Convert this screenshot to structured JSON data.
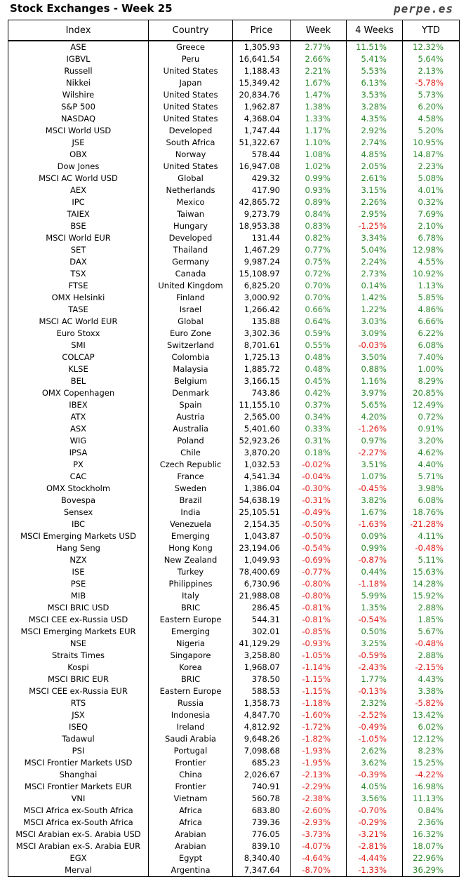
{
  "header": {
    "title": "Stock Exchanges - Week 25",
    "brand": "perpe.es"
  },
  "columns": [
    "Index",
    "Country",
    "Price",
    "Week",
    "4 Weeks",
    "YTD"
  ],
  "colors": {
    "positive": "#2e8b2e",
    "negative": "#e0201a"
  },
  "rows": [
    [
      "ASE",
      "Greece",
      "1,305.93",
      "2.77%",
      "11.51%",
      "12.32%"
    ],
    [
      "IGBVL",
      "Peru",
      "16,641.54",
      "2.66%",
      "5.41%",
      "5.64%"
    ],
    [
      "Russell",
      "United States",
      "1,188.43",
      "2.21%",
      "5.53%",
      "2.13%"
    ],
    [
      "Nikkei",
      "Japan",
      "15,349.42",
      "1.67%",
      "6.13%",
      "-5.78%"
    ],
    [
      "Wilshire",
      "United States",
      "20,834.76",
      "1.47%",
      "3.53%",
      "5.73%"
    ],
    [
      "S&P 500",
      "United States",
      "1,962.87",
      "1.38%",
      "3.28%",
      "6.20%"
    ],
    [
      "NASDAQ",
      "United States",
      "4,368.04",
      "1.33%",
      "4.35%",
      "4.58%"
    ],
    [
      "MSCI World USD",
      "Developed",
      "1,747.44",
      "1.17%",
      "2.92%",
      "5.20%"
    ],
    [
      "JSE",
      "South Africa",
      "51,322.67",
      "1.10%",
      "2.74%",
      "10.95%"
    ],
    [
      "OBX",
      "Norway",
      "578.44",
      "1.08%",
      "4.85%",
      "14.87%"
    ],
    [
      "Dow Jones",
      "United States",
      "16,947.08",
      "1.02%",
      "2.05%",
      "2.23%"
    ],
    [
      "MSCI AC World USD",
      "Global",
      "429.32",
      "0.99%",
      "2.61%",
      "5.08%"
    ],
    [
      "AEX",
      "Netherlands",
      "417.90",
      "0.93%",
      "3.15%",
      "4.01%"
    ],
    [
      "IPC",
      "Mexico",
      "42,865.72",
      "0.89%",
      "2.26%",
      "0.32%"
    ],
    [
      "TAIEX",
      "Taiwan",
      "9,273.79",
      "0.84%",
      "2.95%",
      "7.69%"
    ],
    [
      "BSE",
      "Hungary",
      "18,953.38",
      "0.83%",
      "-1.25%",
      "2.10%"
    ],
    [
      "MSCI World EUR",
      "Developed",
      "131.44",
      "0.82%",
      "3.34%",
      "6.78%"
    ],
    [
      "SET",
      "Thailand",
      "1,467.29",
      "0.77%",
      "5.04%",
      "12.98%"
    ],
    [
      "DAX",
      "Germany",
      "9,987.24",
      "0.75%",
      "2.24%",
      "4.55%"
    ],
    [
      "TSX",
      "Canada",
      "15,108.97",
      "0.72%",
      "2.73%",
      "10.92%"
    ],
    [
      "FTSE",
      "United Kingdom",
      "6,825.20",
      "0.70%",
      "0.14%",
      "1.13%"
    ],
    [
      "OMX Helsinki",
      "Finland",
      "3,000.92",
      "0.70%",
      "1.42%",
      "5.85%"
    ],
    [
      "TASE",
      "Israel",
      "1,266.42",
      "0.66%",
      "1.22%",
      "4.86%"
    ],
    [
      "MSCI AC World EUR",
      "Global",
      "135.88",
      "0.64%",
      "3.03%",
      "6.66%"
    ],
    [
      "Euro Stoxx",
      "Euro Zone",
      "3,302.36",
      "0.59%",
      "3.09%",
      "6.22%"
    ],
    [
      "SMI",
      "Switzerland",
      "8,701.61",
      "0.55%",
      "-0.03%",
      "6.08%"
    ],
    [
      "COLCAP",
      "Colombia",
      "1,725.13",
      "0.48%",
      "3.50%",
      "7.40%"
    ],
    [
      "KLSE",
      "Malaysia",
      "1,885.72",
      "0.48%",
      "0.88%",
      "1.00%"
    ],
    [
      "BEL",
      "Belgium",
      "3,166.15",
      "0.45%",
      "1.16%",
      "8.29%"
    ],
    [
      "OMX Copenhagen",
      "Denmark",
      "743.86",
      "0.42%",
      "3.97%",
      "20.85%"
    ],
    [
      "IBEX",
      "Spain",
      "11,155.10",
      "0.37%",
      "5.65%",
      "12.49%"
    ],
    [
      "ATX",
      "Austria",
      "2,565.00",
      "0.34%",
      "4.20%",
      "0.72%"
    ],
    [
      "ASX",
      "Australia",
      "5,401.60",
      "0.33%",
      "-1.26%",
      "0.91%"
    ],
    [
      "WIG",
      "Poland",
      "52,923.26",
      "0.31%",
      "0.97%",
      "3.20%"
    ],
    [
      "IPSA",
      "Chile",
      "3,870.20",
      "0.18%",
      "-2.27%",
      "4.62%"
    ],
    [
      "PX",
      "Czech Republic",
      "1,032.53",
      "-0.02%",
      "3.51%",
      "4.40%"
    ],
    [
      "CAC",
      "France",
      "4,541.34",
      "-0.04%",
      "1.07%",
      "5.71%"
    ],
    [
      "OMX Stockholm",
      "Sweden",
      "1,386.04",
      "-0.30%",
      "-0.45%",
      "3.98%"
    ],
    [
      "Bovespa",
      "Brazil",
      "54,638.19",
      "-0.31%",
      "3.82%",
      "6.08%"
    ],
    [
      "Sensex",
      "India",
      "25,105.51",
      "-0.49%",
      "1.67%",
      "18.76%"
    ],
    [
      "IBC",
      "Venezuela",
      "2,154.35",
      "-0.50%",
      "-1.63%",
      "-21.28%"
    ],
    [
      "MSCI Emerging Markets USD",
      "Emerging",
      "1,043.87",
      "-0.50%",
      "0.09%",
      "4.11%"
    ],
    [
      "Hang Seng",
      "Hong Kong",
      "23,194.06",
      "-0.54%",
      "0.99%",
      "-0.48%"
    ],
    [
      "NZX",
      "New Zealand",
      "1,049.93",
      "-0.69%",
      "-0.87%",
      "5.11%"
    ],
    [
      "ISE",
      "Turkey",
      "78,400.69",
      "-0.77%",
      "0.44%",
      "15.63%"
    ],
    [
      "PSE",
      "Philippines",
      "6,730.96",
      "-0.80%",
      "-1.18%",
      "14.28%"
    ],
    [
      "MIB",
      "Italy",
      "21,988.08",
      "-0.80%",
      "5.99%",
      "15.92%"
    ],
    [
      "MSCI BRIC USD",
      "BRIC",
      "286.45",
      "-0.81%",
      "1.35%",
      "2.88%"
    ],
    [
      "MSCI CEE ex-Russia USD",
      "Eastern Europe",
      "544.31",
      "-0.81%",
      "-0.54%",
      "1.85%"
    ],
    [
      "MSCI Emerging Markets EUR",
      "Emerging",
      "302.01",
      "-0.85%",
      "0.50%",
      "5.67%"
    ],
    [
      "NSE",
      "Nigeria",
      "41,129.29",
      "-0.93%",
      "3.25%",
      "-0.48%"
    ],
    [
      "Straits Times",
      "Singapore",
      "3,258.80",
      "-1.05%",
      "-0.59%",
      "2.88%"
    ],
    [
      "Kospi",
      "Korea",
      "1,968.07",
      "-1.14%",
      "-2.43%",
      "-2.15%"
    ],
    [
      "MSCI BRIC EUR",
      "BRIC",
      "378.50",
      "-1.15%",
      "1.77%",
      "4.43%"
    ],
    [
      "MSCI CEE ex-Russia EUR",
      "Eastern Europe",
      "588.53",
      "-1.15%",
      "-0.13%",
      "3.38%"
    ],
    [
      "RTS",
      "Russia",
      "1,358.73",
      "-1.18%",
      "2.32%",
      "-5.82%"
    ],
    [
      "JSX",
      "Indonesia",
      "4,847.70",
      "-1.60%",
      "-2.52%",
      "13.42%"
    ],
    [
      "ISEQ",
      "Ireland",
      "4,812.92",
      "-1.72%",
      "-0.49%",
      "6.02%"
    ],
    [
      "Tadawul",
      "Saudi Arabia",
      "9,648.26",
      "-1.82%",
      "-1.05%",
      "12.12%"
    ],
    [
      "PSI",
      "Portugal",
      "7,098.68",
      "-1.93%",
      "2.62%",
      "8.23%"
    ],
    [
      "MSCI Frontier Markets USD",
      "Frontier",
      "685.23",
      "-1.95%",
      "3.62%",
      "15.25%"
    ],
    [
      "Shanghai",
      "China",
      "2,026.67",
      "-2.13%",
      "-0.39%",
      "-4.22%"
    ],
    [
      "MSCI Frontier Markets EUR",
      "Frontier",
      "740.91",
      "-2.29%",
      "4.05%",
      "16.98%"
    ],
    [
      "VNI",
      "Vietnam",
      "560.78",
      "-2.38%",
      "3.56%",
      "11.13%"
    ],
    [
      "MSCI Africa ex-South Africa",
      "Africa",
      "683.80",
      "-2.60%",
      "-0.70%",
      "0.84%"
    ],
    [
      "MSCI Africa ex-South Africa",
      "Africa",
      "739.36",
      "-2.93%",
      "-0.29%",
      "2.36%"
    ],
    [
      "MSCI Arabian ex-S. Arabia USD",
      "Arabian",
      "776.05",
      "-3.73%",
      "-3.21%",
      "16.32%"
    ],
    [
      "MSCI Arabian ex-S. Arabia EUR",
      "Arabian",
      "839.10",
      "-4.07%",
      "-2.81%",
      "18.07%"
    ],
    [
      "EGX",
      "Egypt",
      "8,340.40",
      "-4.64%",
      "-4.44%",
      "22.96%"
    ],
    [
      "Merval",
      "Argentina",
      "7,347.64",
      "-8.70%",
      "-1.33%",
      "36.29%"
    ]
  ]
}
